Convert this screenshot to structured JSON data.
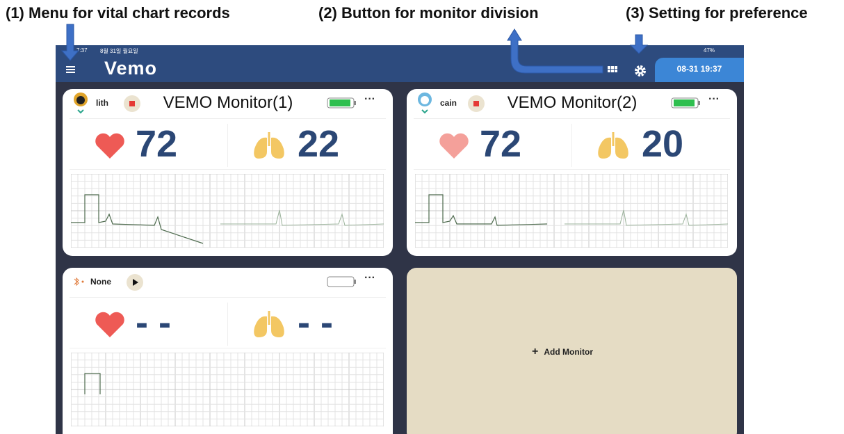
{
  "annotations": [
    "(1) Menu for vital chart records",
    "(2) Button for monitor division",
    "(3) Setting for preference"
  ],
  "status_bar": {
    "time": "7:37",
    "date": "8월 31일 월요일",
    "battery": "47%"
  },
  "header": {
    "logo": "Vemo",
    "datetime": "08-31 19:37"
  },
  "monitors": [
    {
      "user": "lith",
      "title": "VEMO Monitor(1)",
      "heart_rate": 72,
      "resp_rate": 22
    },
    {
      "user": "cain",
      "title": "VEMO Monitor(2)",
      "heart_rate": 72,
      "resp_rate": 20
    },
    {
      "user": "None",
      "heart_rate": "- -",
      "resp_rate": "- -"
    }
  ],
  "add_monitor": "Add Monitor"
}
